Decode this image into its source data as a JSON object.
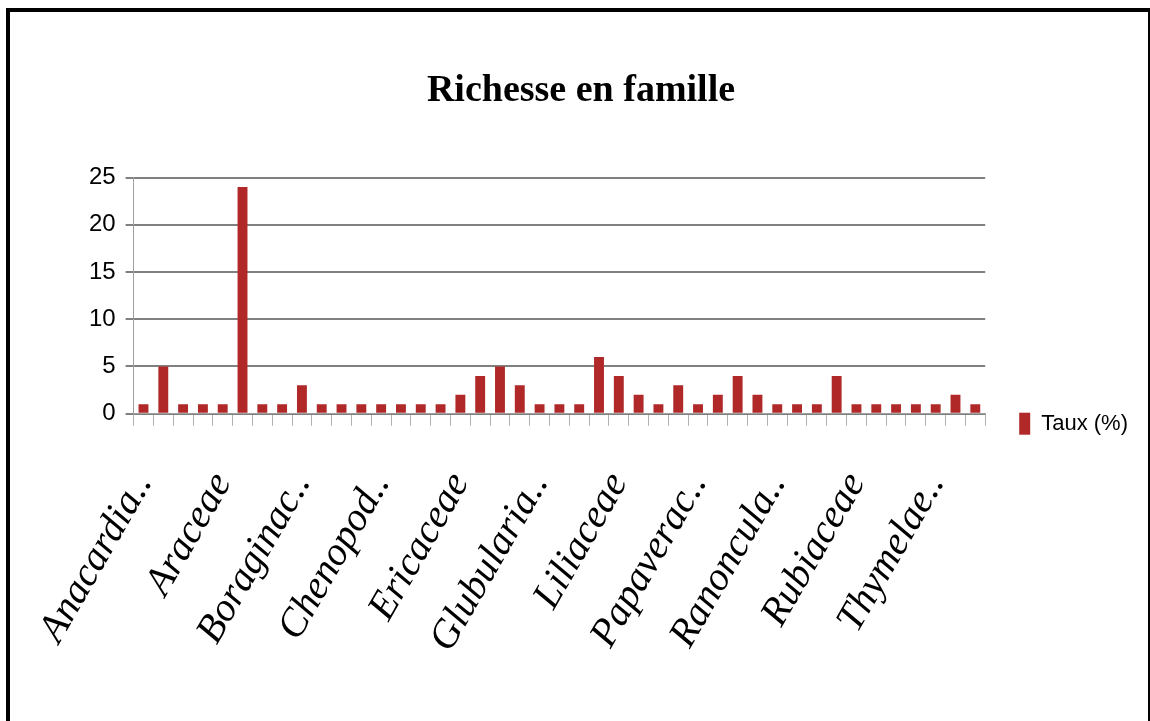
{
  "chart_data": {
    "type": "bar",
    "title": "Richesse en famille",
    "categories": [
      "Anacardia..",
      null,
      null,
      null,
      "Araceae",
      null,
      null,
      null,
      "Boraginac..",
      null,
      null,
      null,
      "Chenopod..",
      null,
      null,
      null,
      "Ericaceae",
      null,
      null,
      null,
      "Glubularia..",
      null,
      null,
      null,
      "Liliaceae",
      null,
      null,
      null,
      "Papaverac..",
      null,
      null,
      null,
      "Ranoncula..",
      null,
      null,
      null,
      "Rubiaceae",
      null,
      null,
      null,
      "Thymelae..",
      null,
      null
    ],
    "series": [
      {
        "name": "Taux (%)",
        "color": "#b02828",
        "values": [
          1,
          5,
          1,
          1,
          1,
          24,
          1,
          1,
          3,
          1,
          1,
          1,
          1,
          1,
          1,
          1,
          2,
          4,
          5,
          3,
          1,
          1,
          1,
          6,
          4,
          2,
          1,
          3,
          1,
          2,
          4,
          2,
          1,
          1,
          1,
          4,
          1,
          1,
          1,
          1,
          1,
          2,
          1
        ]
      }
    ],
    "ylim": [
      0,
      25
    ],
    "yticks": [
      0,
      5,
      10,
      15,
      20,
      25
    ],
    "grid": "y",
    "legend": "right"
  }
}
